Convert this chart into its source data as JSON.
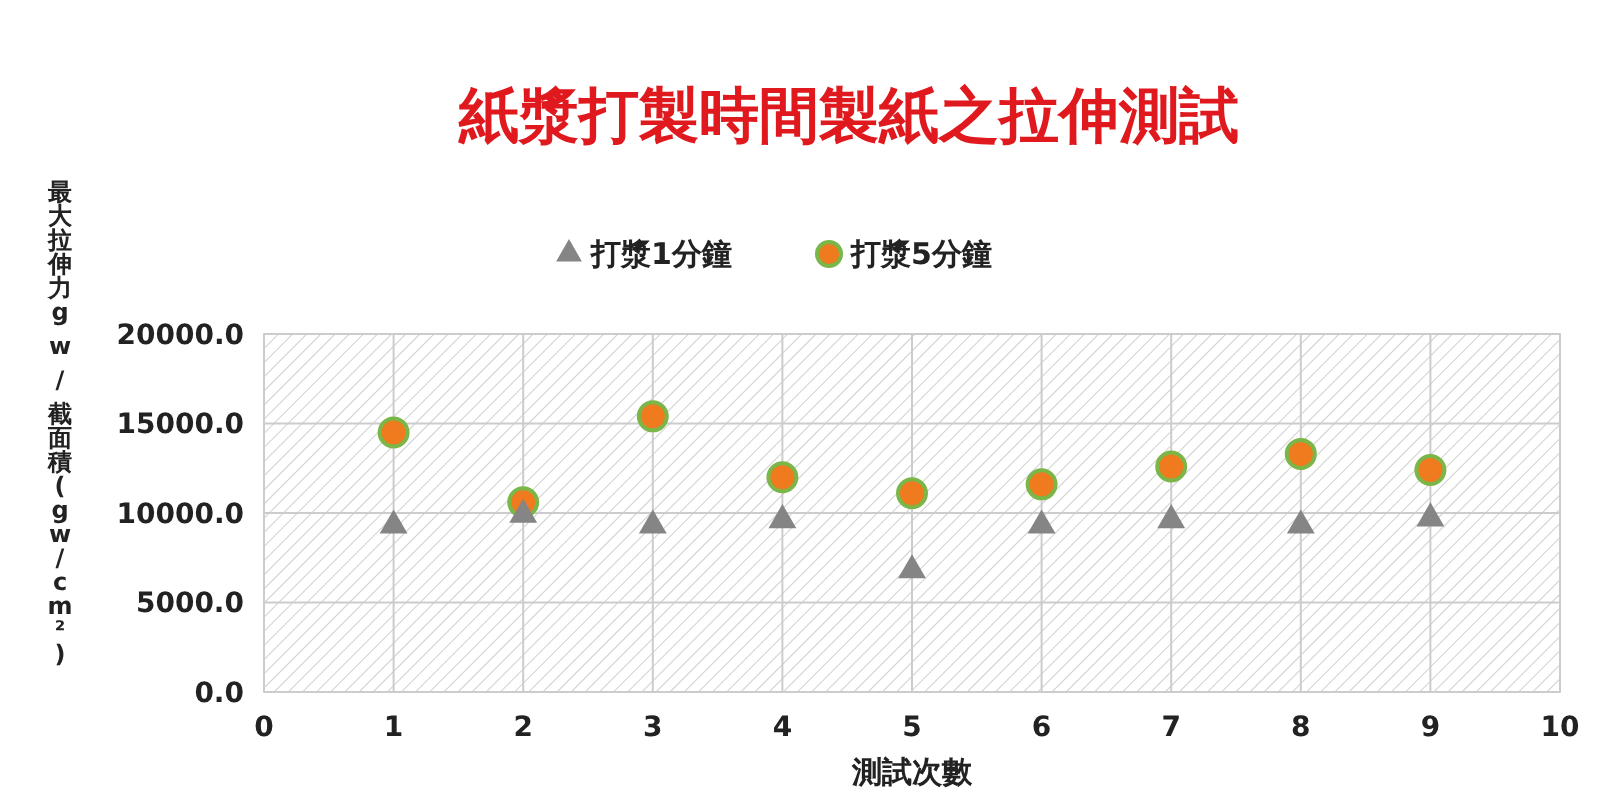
{
  "chart_data": {
    "type": "scatter",
    "title": "紙漿打製時間製紙之拉伸測試",
    "xlabel": "測試次數",
    "ylabel": "最大拉伸力g w / 截面積(gw/cm²)",
    "x": [
      1,
      2,
      3,
      4,
      5,
      6,
      7,
      8,
      9
    ],
    "series": [
      {
        "name": "打漿1分鐘",
        "color": "#858585",
        "marker": "triangle",
        "values": [
          9300,
          9900,
          9300,
          9600,
          6800,
          9300,
          9600,
          9300,
          9700
        ]
      },
      {
        "name": "打漿5分鐘",
        "color": "#f07a1e",
        "marker": "circle",
        "values": [
          14500,
          10600,
          15400,
          12000,
          11100,
          11600,
          12600,
          13300,
          12400
        ]
      }
    ],
    "xlim": [
      0,
      10
    ],
    "xticks": [
      0,
      1,
      2,
      3,
      4,
      5,
      6,
      7,
      8,
      9,
      10
    ],
    "ylim": [
      0,
      20000
    ],
    "yticks": [
      {
        "value": 0,
        "label": "0.0"
      },
      {
        "value": 5000,
        "label": "5000.0"
      },
      {
        "value": 10000,
        "label": "10000.0"
      },
      {
        "value": 15000,
        "label": "15000.0"
      },
      {
        "value": 20000,
        "label": "20000.0"
      }
    ],
    "grid": true,
    "legend": "top"
  }
}
